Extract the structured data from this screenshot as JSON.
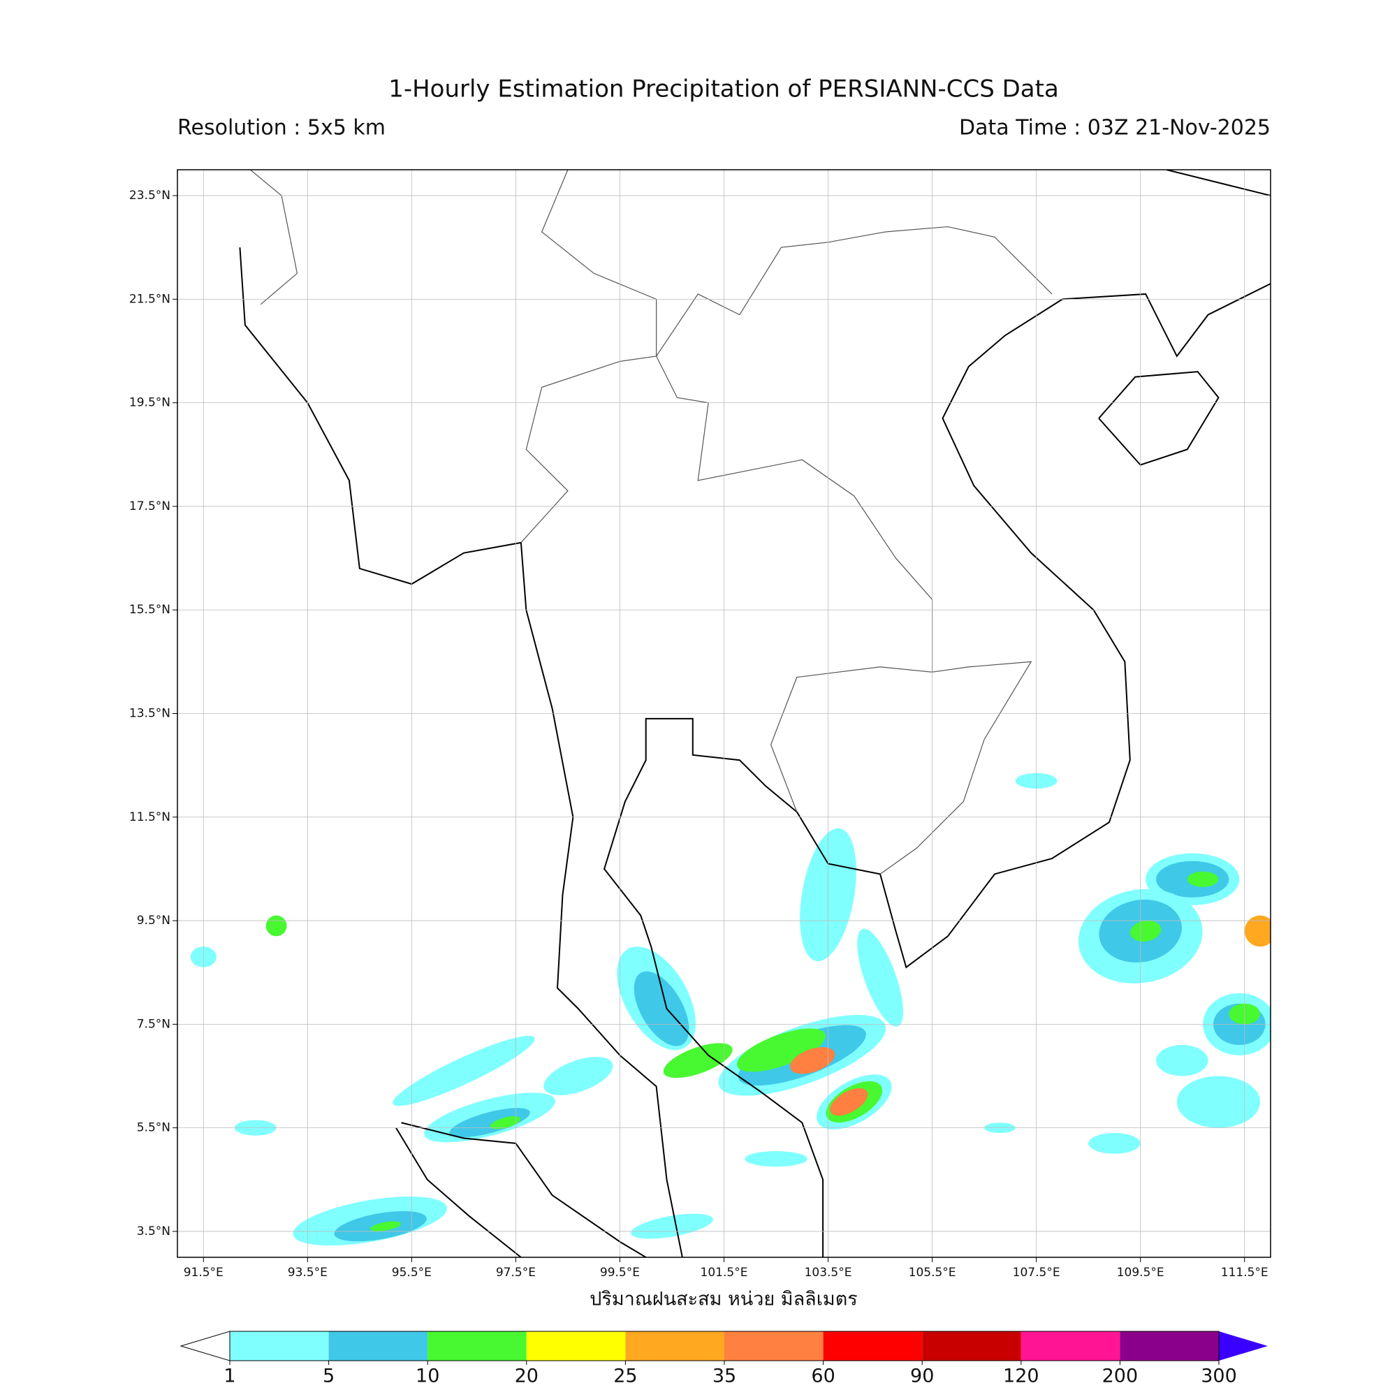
{
  "map": {
    "title": "1-Hourly Estimation Precipitation of PERSIANN-CCS Data",
    "resolution": "Resolution : 5x5 km",
    "data_time": "Data Time : 03Z 21-Nov-2025",
    "xlabel": "ปริมาณฝนสะสม หน่วย มิลลิเมตร",
    "lonlim": [
      91,
      112
    ],
    "latlim": [
      3,
      24
    ],
    "grid": true,
    "lonticks": [
      {
        "value": 91.5,
        "label": "91.5°E"
      },
      {
        "value": 93.5,
        "label": "93.5°E"
      },
      {
        "value": 95.5,
        "label": "95.5°E"
      },
      {
        "value": 97.5,
        "label": "97.5°E"
      },
      {
        "value": 99.5,
        "label": "99.5°E"
      },
      {
        "value": 101.5,
        "label": "101.5°E"
      },
      {
        "value": 103.5,
        "label": "103.5°E"
      },
      {
        "value": 105.5,
        "label": "105.5°E"
      },
      {
        "value": 107.5,
        "label": "107.5°E"
      },
      {
        "value": 109.5,
        "label": "109.5°E"
      },
      {
        "value": 111.5,
        "label": "111.5°E"
      }
    ],
    "latticks": [
      {
        "value": 23.5,
        "label": "23.5°N"
      },
      {
        "value": 21.5,
        "label": "21.5°N"
      },
      {
        "value": 19.5,
        "label": "19.5°N"
      },
      {
        "value": 17.5,
        "label": "17.5°N"
      },
      {
        "value": 15.5,
        "label": "15.5°N"
      },
      {
        "value": 13.5,
        "label": "13.5°N"
      },
      {
        "value": 11.5,
        "label": "11.5°N"
      },
      {
        "value": 9.5,
        "label": "9.5°N"
      },
      {
        "value": 7.5,
        "label": "7.5°N"
      },
      {
        "value": 5.5,
        "label": "5.5°N"
      },
      {
        "value": 3.5,
        "label": "3.5°N"
      }
    ],
    "colorbar": {
      "bounds": [
        1,
        5,
        10,
        20,
        25,
        35,
        60,
        90,
        120,
        200,
        300
      ],
      "colors": [
        "#80ffff",
        "#40c8e8",
        "#48f830",
        "#ffff00",
        "#ffa820",
        "#ff8040",
        "#ff0000",
        "#c80000",
        "#ff1493",
        "#8b008b"
      ],
      "under_color": "#ffffff",
      "over_color": "#3a00ff"
    }
  }
}
